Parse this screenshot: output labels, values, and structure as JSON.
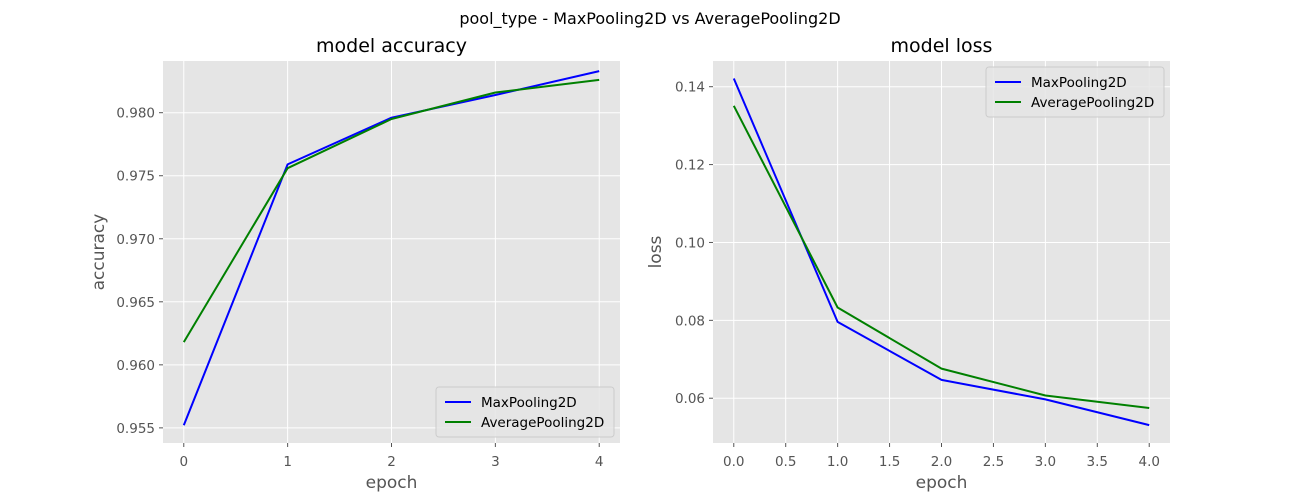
{
  "figure": {
    "title": "pool_type - MaxPooling2D vs AveragePooling2D"
  },
  "style": {
    "panel_bg": "#e5e5e5",
    "grid_color": "#ffffff",
    "tick_color": "#555555",
    "legend_bg": "#e5e5e5",
    "legend_border": "#cccccc"
  },
  "chart_data": [
    {
      "type": "line",
      "title": "model accuracy",
      "xlabel": "epoch",
      "ylabel": "accuracy",
      "x": [
        0,
        1,
        2,
        3,
        4
      ],
      "xlim": [
        -0.2,
        4.2
      ],
      "ylim": [
        0.9538,
        0.9841
      ],
      "xticks": [
        0,
        1,
        2,
        3,
        4
      ],
      "xtick_labels": [
        "0",
        "1",
        "2",
        "3",
        "4"
      ],
      "yticks": [
        0.955,
        0.96,
        0.965,
        0.97,
        0.975,
        0.98
      ],
      "ytick_labels": [
        "0.955",
        "0.960",
        "0.965",
        "0.970",
        "0.975",
        "0.980"
      ],
      "grid": true,
      "legend_position": "lower-right",
      "series": [
        {
          "name": "MaxPooling2D",
          "color": "#0000ff",
          "values": [
            0.9552,
            0.9759,
            0.9796,
            0.9814,
            0.9833
          ]
        },
        {
          "name": "AveragePooling2D",
          "color": "#008000",
          "values": [
            0.9618,
            0.9756,
            0.9795,
            0.9816,
            0.9826
          ]
        }
      ]
    },
    {
      "type": "line",
      "title": "model loss",
      "xlabel": "epoch",
      "ylabel": "loss",
      "x": [
        0,
        1,
        2,
        3,
        4
      ],
      "xlim": [
        -0.2,
        4.2
      ],
      "ylim": [
        0.0485,
        0.1466
      ],
      "xticks": [
        0,
        0.5,
        1,
        1.5,
        2,
        2.5,
        3,
        3.5,
        4
      ],
      "xtick_labels": [
        "0.0",
        "0.5",
        "1.0",
        "1.5",
        "2.0",
        "2.5",
        "3.0",
        "3.5",
        "4.0"
      ],
      "yticks": [
        0.06,
        0.08,
        0.1,
        0.12,
        0.14
      ],
      "ytick_labels": [
        "0.06",
        "0.08",
        "0.10",
        "0.12",
        "0.14"
      ],
      "grid": true,
      "legend_position": "top-right",
      "series": [
        {
          "name": "MaxPooling2D",
          "color": "#0000ff",
          "values": [
            0.1421,
            0.0796,
            0.0647,
            0.0597,
            0.0531
          ]
        },
        {
          "name": "AveragePooling2D",
          "color": "#008000",
          "values": [
            0.1351,
            0.0833,
            0.0676,
            0.0607,
            0.0575
          ]
        }
      ]
    }
  ]
}
